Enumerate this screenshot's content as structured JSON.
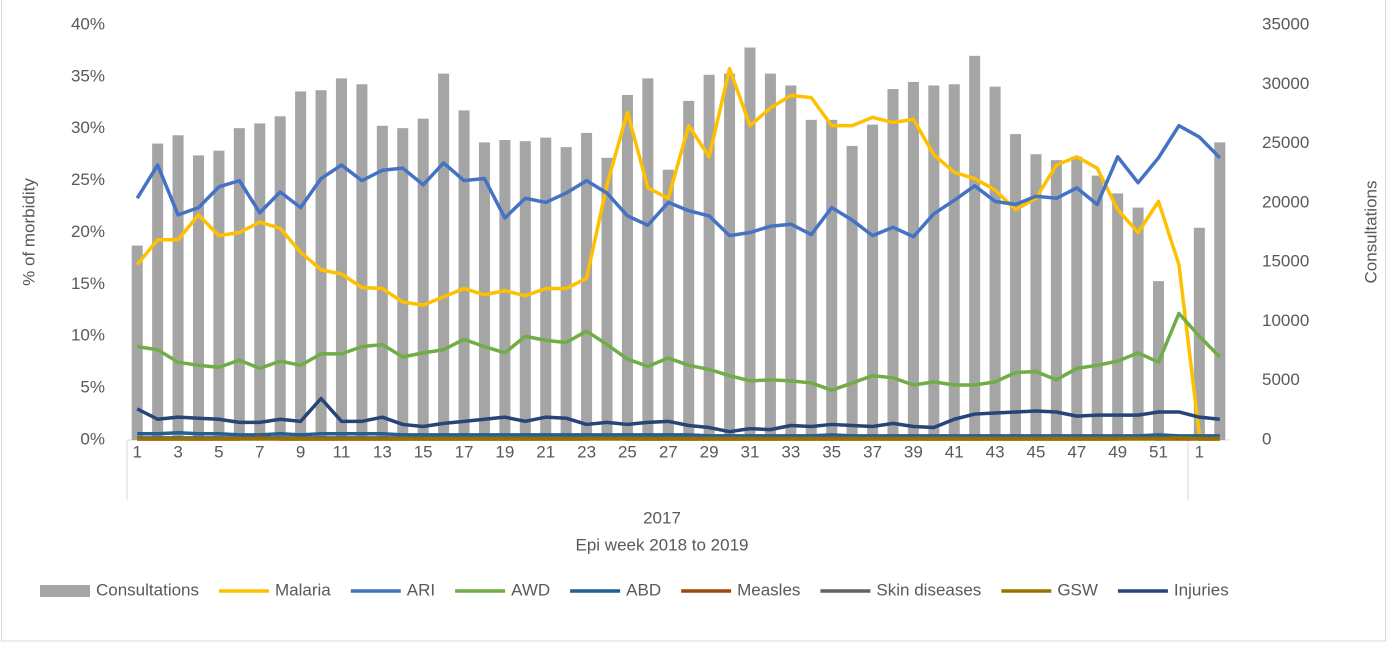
{
  "chart_data": {
    "type": "combo",
    "categories": [
      "1",
      null,
      "3",
      null,
      "5",
      null,
      "7",
      null,
      "9",
      null,
      "11",
      null,
      "13",
      null,
      "15",
      null,
      "17",
      null,
      "19",
      null,
      "21",
      null,
      "23",
      null,
      "25",
      null,
      "27",
      null,
      "29",
      null,
      "31",
      null,
      "33",
      null,
      "35",
      null,
      "37",
      null,
      "39",
      null,
      "41",
      null,
      "43",
      null,
      "45",
      null,
      "47",
      null,
      "49",
      null,
      "51",
      null,
      "1",
      null
    ],
    "group_label": "2017",
    "x_label": "Epi week 2018 to 2019",
    "y_label": "% of morbidity",
    "y2_label": "Consultations",
    "ylim": [
      0,
      40
    ],
    "yticks": [
      {
        "value": 0,
        "label": "0%"
      },
      {
        "value": 5,
        "label": "5%"
      },
      {
        "value": 10,
        "label": "10%"
      },
      {
        "value": 15,
        "label": "15%"
      },
      {
        "value": 20,
        "label": "20%"
      },
      {
        "value": 25,
        "label": "25%"
      },
      {
        "value": 30,
        "label": "30%"
      },
      {
        "value": 35,
        "label": "35%"
      },
      {
        "value": 40,
        "label": "40%"
      }
    ],
    "y2lim": [
      0,
      35000
    ],
    "y2ticks": [
      0,
      5000,
      10000,
      15000,
      20000,
      25000,
      30000,
      35000
    ],
    "legend": "bottom",
    "series": [
      {
        "name": "Consultations",
        "type": "bar",
        "axis": "y2",
        "color": "#a5a5a5",
        "values": [
          16400,
          25000,
          25700,
          24000,
          24400,
          26300,
          26700,
          27300,
          29400,
          29500,
          30500,
          30000,
          26500,
          26300,
          27100,
          30900,
          27800,
          25100,
          25300,
          25200,
          25500,
          24700,
          25900,
          23800,
          29100,
          30500,
          22800,
          28600,
          30800,
          30900,
          33100,
          30900,
          29900,
          27000,
          27000,
          24800,
          26600,
          29600,
          30200,
          29900,
          30000,
          32400,
          29800,
          25800,
          24100,
          23600,
          23900,
          22300,
          20800,
          19600,
          13400,
          0,
          17900,
          25100
        ]
      },
      {
        "name": "Malaria",
        "type": "line",
        "color": "#ffc000",
        "values": [
          16.9,
          19.3,
          19.3,
          21.7,
          19.7,
          20.0,
          21.0,
          20.4,
          18.1,
          16.4,
          16.0,
          14.7,
          14.6,
          13.3,
          13.0,
          13.8,
          14.6,
          14.0,
          14.4,
          13.9,
          14.6,
          14.6,
          15.6,
          24.6,
          31.6,
          24.3,
          23.3,
          30.3,
          27.3,
          35.8,
          30.3,
          32.0,
          33.2,
          33.0,
          30.3,
          30.3,
          31.1,
          30.6,
          30.9,
          27.5,
          25.8,
          25.2,
          24.1,
          22.2,
          23.3,
          26.5,
          27.3,
          26.2,
          22.2,
          20.0,
          23.0,
          16.9,
          0.5,
          0.2
        ]
      },
      {
        "name": "ARI",
        "type": "line",
        "color": "#4472c4",
        "values": [
          23.3,
          26.5,
          21.7,
          22.4,
          24.4,
          25.0,
          21.9,
          23.9,
          22.4,
          25.2,
          26.5,
          25.0,
          26.0,
          26.2,
          24.6,
          26.7,
          25.0,
          25.2,
          21.4,
          23.3,
          22.9,
          23.8,
          25.0,
          23.8,
          21.6,
          20.7,
          22.9,
          22.1,
          21.6,
          19.7,
          20.0,
          20.6,
          20.8,
          19.8,
          22.4,
          21.2,
          19.7,
          20.5,
          19.6,
          21.8,
          23.1,
          24.5,
          23.0,
          22.7,
          23.5,
          23.3,
          24.3,
          22.7,
          27.3,
          24.8,
          27.2,
          30.3,
          29.2,
          27.2
        ]
      },
      {
        "name": "AWD",
        "type": "line",
        "color": "#70ad47",
        "values": [
          9,
          8.7,
          7.5,
          7.2,
          7,
          7.7,
          6.9,
          7.6,
          7.2,
          8.3,
          8.3,
          9,
          9.2,
          8,
          8.4,
          8.7,
          9.7,
          9,
          8.4,
          10,
          9.6,
          9.4,
          10.5,
          9.2,
          7.8,
          7.1,
          7.9,
          7.2,
          6.8,
          6.2,
          5.7,
          5.8,
          5.7,
          5.5,
          4.8,
          5.5,
          6.2,
          6,
          5.3,
          5.6,
          5.3,
          5.3,
          5.6,
          6.5,
          6.6,
          5.8,
          6.9,
          7.2,
          7.6,
          8.4,
          7.5,
          12.2,
          10,
          8
        ]
      },
      {
        "name": "ABD",
        "type": "line",
        "color": "#255e91",
        "values": [
          0.6,
          0.6,
          0.7,
          0.6,
          0.6,
          0.5,
          0.5,
          0.6,
          0.5,
          0.6,
          0.6,
          0.6,
          0.6,
          0.5,
          0.5,
          0.5,
          0.5,
          0.5,
          0.5,
          0.5,
          0.5,
          0.5,
          0.5,
          0.5,
          0.5,
          0.5,
          0.5,
          0.5,
          0.4,
          0.4,
          0.4,
          0.4,
          0.4,
          0.4,
          0.5,
          0.4,
          0.4,
          0.4,
          0.4,
          0.4,
          0.4,
          0.4,
          0.4,
          0.4,
          0.4,
          0.4,
          0.4,
          0.4,
          0.4,
          0.4,
          0.5,
          0.4,
          0.4,
          0.4
        ]
      },
      {
        "name": "Measles",
        "type": "line",
        "color": "#9e480e",
        "values": [
          0.1,
          0.1,
          0.1,
          0.1,
          0.1,
          0.1,
          0.3,
          0.1,
          0.1,
          0.1,
          0.1,
          0.1,
          0.1,
          0.1,
          0.1,
          0.1,
          0.1,
          0.1,
          0.1,
          0.1,
          0.1,
          0.1,
          0.1,
          0.2,
          0.1,
          0.1,
          0.1,
          0.1,
          0.1,
          0.1,
          0.1,
          0.1,
          0.1,
          0.1,
          0.1,
          0.1,
          0.1,
          0.1,
          0.1,
          0.1,
          0.1,
          0.1,
          0.1,
          0.1,
          0.1,
          0.1,
          0.1,
          0.1,
          0.1,
          0.2,
          0.1,
          0.1,
          0.1,
          0.1
        ]
      },
      {
        "name": "Skin diseases",
        "type": "line",
        "color": "#636363",
        "values": [
          0.2,
          0.2,
          0.2,
          0.2,
          0.2,
          0.2,
          0.2,
          0.2,
          0.2,
          0.2,
          0.2,
          0.2,
          0.2,
          0.2,
          0.2,
          0.2,
          0.2,
          0.2,
          0.2,
          0.2,
          0.2,
          0.2,
          0.2,
          0.2,
          0.2,
          0.2,
          0.2,
          0.2,
          0.2,
          0.2,
          0.2,
          0.2,
          0.2,
          0.2,
          0.2,
          0.2,
          0.2,
          0.2,
          0.2,
          0.2,
          0.2,
          0.2,
          0.2,
          0.2,
          0.2,
          0.2,
          0.2,
          0.2,
          0.2,
          0.2,
          0.2,
          0.2,
          0.2,
          0.2
        ]
      },
      {
        "name": "GSW",
        "type": "line",
        "color": "#997300",
        "values": [
          0.1,
          0.1,
          0.1,
          0.1,
          0.1,
          0.1,
          0.1,
          0.1,
          0.1,
          0.1,
          0.1,
          0.1,
          0.1,
          0.1,
          0.1,
          0.1,
          0.1,
          0.1,
          0.1,
          0.1,
          0.1,
          0.1,
          0.1,
          0.1,
          0.1,
          0.1,
          0.1,
          0.1,
          0.1,
          0.1,
          0.1,
          0.1,
          0.1,
          0.1,
          0.1,
          0.1,
          0.1,
          0.1,
          0.1,
          0.1,
          0.1,
          0.1,
          0.1,
          0.1,
          0.1,
          0.1,
          0.1,
          0.1,
          0.1,
          0.1,
          0.1,
          0.2,
          0.1,
          0.1
        ]
      },
      {
        "name": "Injuries",
        "type": "line",
        "color": "#264478",
        "values": [
          3,
          2,
          2.2,
          2.1,
          2,
          1.7,
          1.7,
          2,
          1.8,
          4,
          1.8,
          1.8,
          2.2,
          1.5,
          1.3,
          1.6,
          1.8,
          2,
          2.2,
          1.8,
          2.2,
          2.1,
          1.5,
          1.7,
          1.5,
          1.7,
          1.8,
          1.4,
          1.2,
          0.8,
          1.1,
          1,
          1.4,
          1.3,
          1.5,
          1.4,
          1.3,
          1.6,
          1.3,
          1.2,
          2,
          2.5,
          2.6,
          2.7,
          2.8,
          2.7,
          2.3,
          2.4,
          2.4,
          2.4,
          2.7,
          2.7,
          2.2,
          2
        ]
      }
    ]
  }
}
